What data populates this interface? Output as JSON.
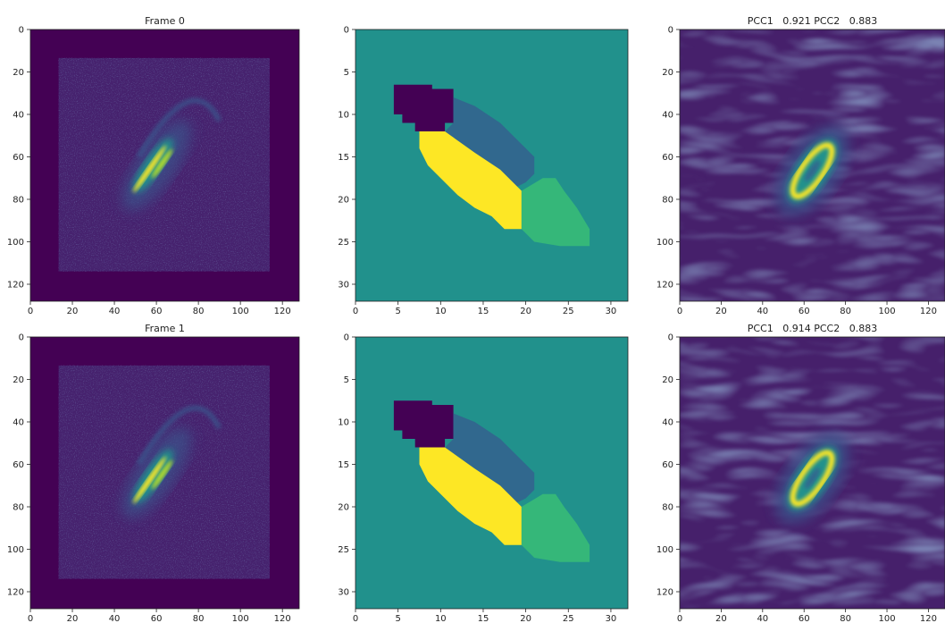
{
  "colors": {
    "viridis_dark": "#440154",
    "viridis_blue": "#31688e",
    "viridis_teal": "#21918c",
    "viridis_green": "#35b779",
    "viridis_yellow": "#fde725"
  },
  "chart_data": [
    {
      "type": "heatmap",
      "title": "Frame 0",
      "xticks": [
        0,
        20,
        40,
        60,
        80,
        100,
        120
      ],
      "yticks": [
        0,
        20,
        40,
        60,
        80,
        100,
        120
      ],
      "xlim": [
        0,
        128
      ],
      "ylim": [
        128,
        0
      ],
      "colormap": "viridis",
      "content": "diffraction frame"
    },
    {
      "type": "heatmap",
      "title": "",
      "xticks": [
        0,
        5,
        10,
        15,
        20,
        25,
        30
      ],
      "yticks": [
        0,
        5,
        10,
        15,
        20,
        25,
        30
      ],
      "xlim": [
        0,
        32
      ],
      "ylim": [
        32,
        0
      ],
      "colormap": "viridis",
      "content": "segmentation map"
    },
    {
      "type": "heatmap",
      "title": "PCC1   0.921 PCC2   0.883",
      "xticks": [
        0,
        20,
        40,
        60,
        80,
        100,
        120
      ],
      "yticks": [
        0,
        20,
        40,
        60,
        80,
        100,
        120
      ],
      "xlim": [
        0,
        128
      ],
      "ylim": [
        128,
        0
      ],
      "colormap": "viridis",
      "content": "reconstruction"
    },
    {
      "type": "heatmap",
      "title": "Frame 1",
      "xticks": [
        0,
        20,
        40,
        60,
        80,
        100,
        120
      ],
      "yticks": [
        0,
        20,
        40,
        60,
        80,
        100,
        120
      ],
      "xlim": [
        0,
        128
      ],
      "ylim": [
        128,
        0
      ],
      "colormap": "viridis",
      "content": "diffraction frame"
    },
    {
      "type": "heatmap",
      "title": "",
      "xticks": [
        0,
        5,
        10,
        15,
        20,
        25,
        30
      ],
      "yticks": [
        0,
        5,
        10,
        15,
        20,
        25,
        30
      ],
      "xlim": [
        0,
        32
      ],
      "ylim": [
        32,
        0
      ],
      "colormap": "viridis",
      "content": "segmentation map"
    },
    {
      "type": "heatmap",
      "title": "PCC1   0.914 PCC2   0.883",
      "xticks": [
        0,
        20,
        40,
        60,
        80,
        100,
        120
      ],
      "yticks": [
        0,
        20,
        40,
        60,
        80,
        100,
        120
      ],
      "xlim": [
        0,
        128
      ],
      "ylim": [
        128,
        0
      ],
      "colormap": "viridis",
      "content": "reconstruction"
    }
  ]
}
